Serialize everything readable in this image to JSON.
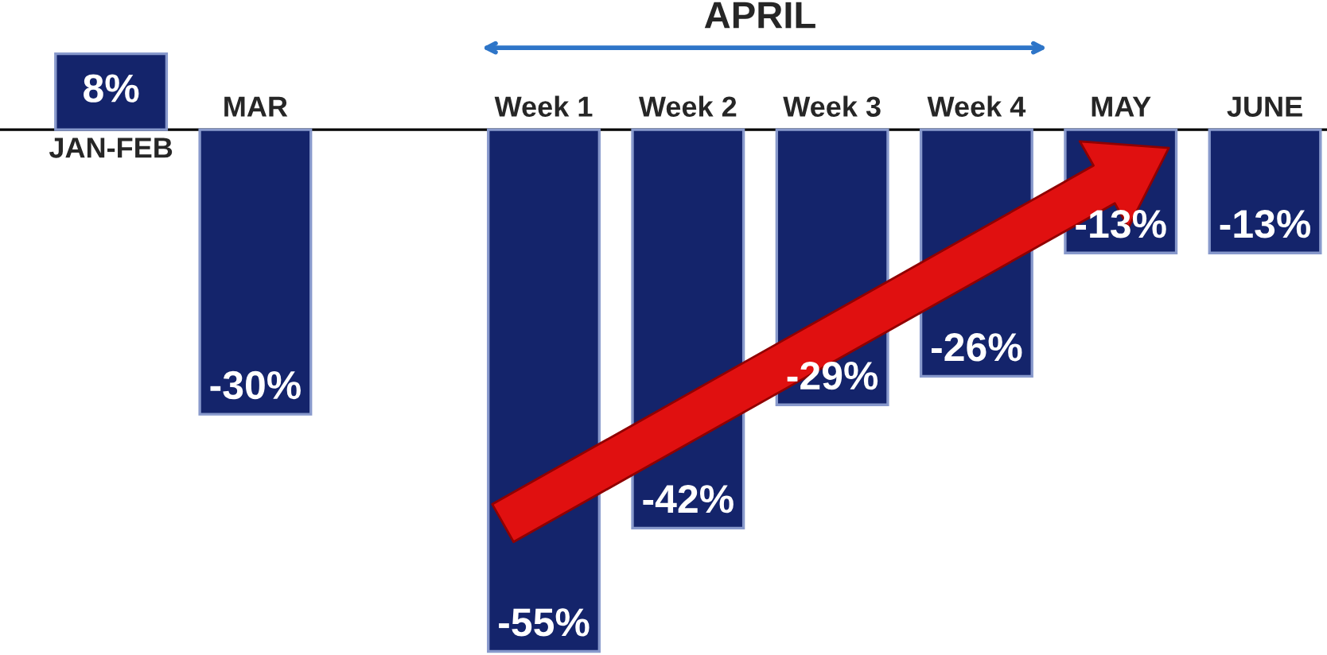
{
  "chart_data": {
    "type": "bar",
    "categories": [
      "JAN-FEB",
      "MAR",
      null,
      "Week 1",
      "Week 2",
      "Week 3",
      "Week 4",
      "MAY",
      "JUNE"
    ],
    "values": [
      8,
      -30,
      null,
      -55,
      -42,
      -29,
      -26,
      -13,
      -13
    ],
    "value_labels": [
      "8%",
      "-30%",
      null,
      "-55%",
      "-42%",
      "-29%",
      "-26%",
      "-13%",
      "-13%"
    ],
    "color": "#14246b",
    "annotations": [
      "APRIL"
    ]
  }
}
